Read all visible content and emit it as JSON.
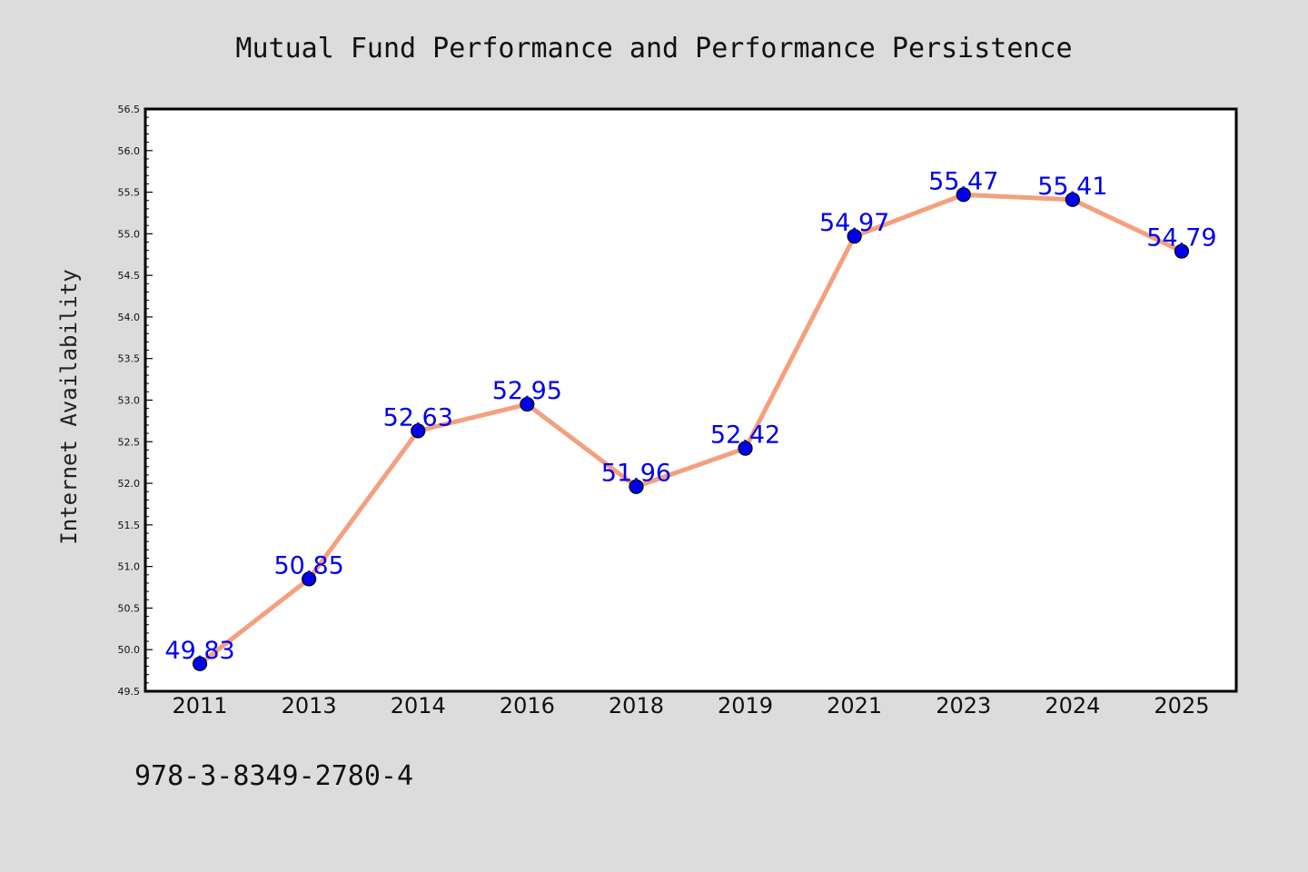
{
  "chart_data": {
    "type": "line",
    "title": "Mutual Fund Performance and Performance Persistence",
    "ylabel": "Internet Availability",
    "xlabel": "",
    "categories": [
      "2011",
      "2013",
      "2014",
      "2016",
      "2018",
      "2019",
      "2021",
      "2023",
      "2024",
      "2025"
    ],
    "series": [
      {
        "values": [
          49.83,
          50.85,
          52.63,
          52.95,
          51.96,
          52.42,
          54.97,
          55.47,
          55.41,
          54.79
        ],
        "value_labels": [
          "49.83",
          "50.85",
          "52.63",
          "52.95",
          "51.96",
          "52.42",
          "54.97",
          "55.47",
          "55.41",
          "54.79"
        ]
      }
    ],
    "ylim": [
      49.5,
      56.5
    ],
    "yticks": [
      "49.5",
      "50.0",
      "50.5",
      "51.0",
      "51.5",
      "52.0",
      "52.5",
      "53.0",
      "53.5",
      "54.0",
      "54.5",
      "55.0",
      "55.5",
      "56.0",
      "56.5"
    ],
    "grid": false,
    "legend": "none",
    "footer": "978-3-8349-2780-4",
    "colors": {
      "background": "#dcdcdc",
      "plot_background": "#ffffff",
      "line": "#f4a07e",
      "marker": "#0000ee",
      "data_label": "#0000ee"
    }
  }
}
